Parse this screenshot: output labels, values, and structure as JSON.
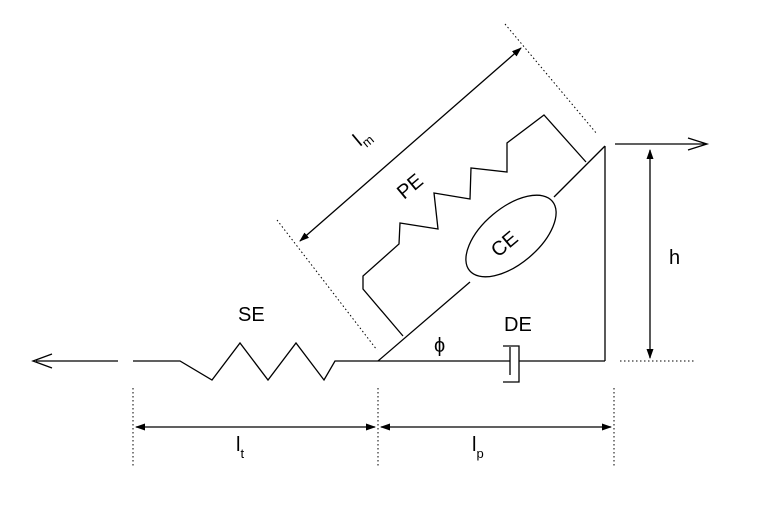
{
  "labels": {
    "series_elastic": "SE",
    "parallel_elastic": "PE",
    "contractile": "CE",
    "damping": "DE",
    "angle": "ϕ",
    "height": "h",
    "muscle_length": {
      "main": "l",
      "sub": "m"
    },
    "tendon_length": {
      "main": "l",
      "sub": "t"
    },
    "pennation_length": {
      "main": "l",
      "sub": "p"
    }
  }
}
